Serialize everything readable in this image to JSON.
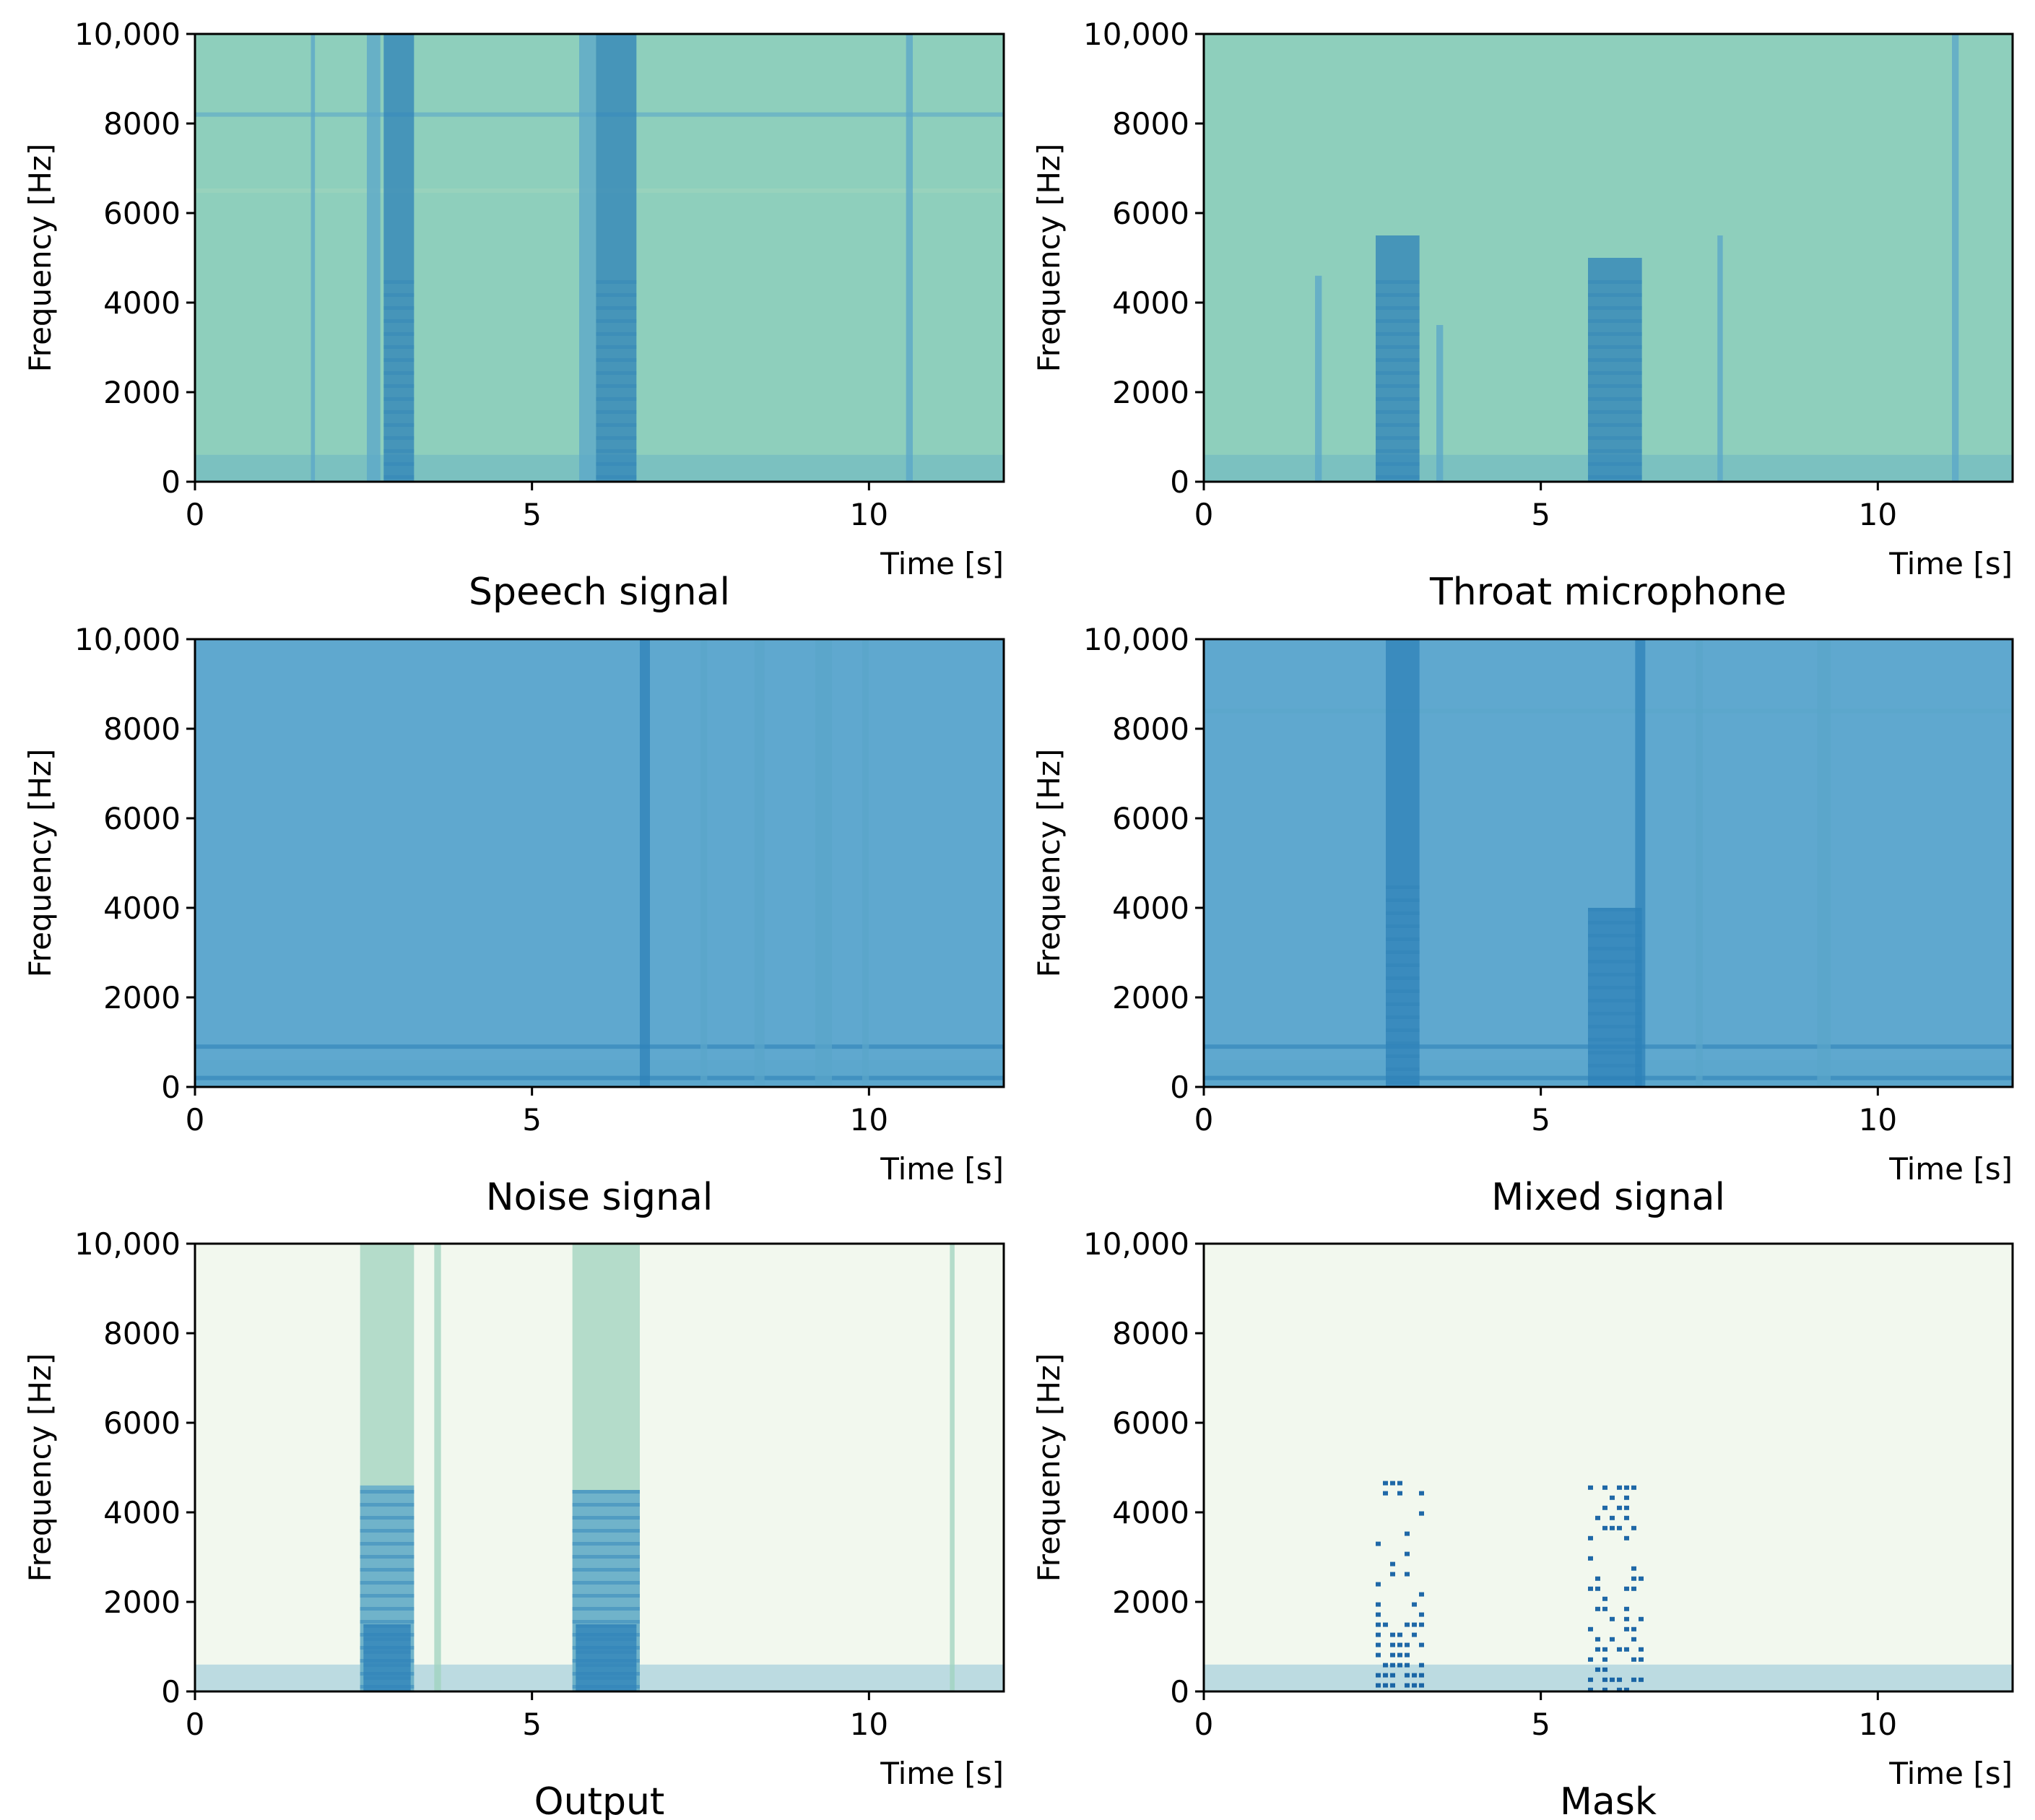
{
  "colors": {
    "background_speech": "#8ecfbc",
    "background_noise": "#5fa8cf",
    "background_output": "#f2f8ee",
    "stripe_dark": "#2e82b8",
    "stripe_mid": "#5aa6c9",
    "stripe_light": "#9fd3bd",
    "mask_dark": "#08589e"
  },
  "chart_data": [
    {
      "type": "heatmap",
      "title": "Speech signal",
      "xlabel": "Time [s]",
      "ylabel": "Frequency [Hz]",
      "xlim": [
        0,
        12
      ],
      "ylim": [
        0,
        10000
      ],
      "xticks": [
        0,
        5,
        10
      ],
      "xtick_labels": [
        "0",
        "5",
        "10"
      ],
      "yticks": [
        0,
        2000,
        4000,
        6000,
        8000,
        10000
      ],
      "ytick_labels": [
        "0",
        "2000",
        "4000",
        "6000",
        "8000",
        "10,000"
      ],
      "background": "background_speech",
      "bands": [
        {
          "t0": 1.72,
          "t1": 1.78,
          "f_top": 10000,
          "color": "stripe_mid"
        },
        {
          "t0": 2.55,
          "t1": 2.75,
          "f_top": 10000,
          "color": "stripe_mid"
        },
        {
          "t0": 2.8,
          "t1": 3.25,
          "f_top": 10000,
          "color": "stripe_dark"
        },
        {
          "t0": 5.7,
          "t1": 5.95,
          "f_top": 10000,
          "color": "stripe_mid"
        },
        {
          "t0": 5.95,
          "t1": 6.55,
          "f_top": 10000,
          "color": "stripe_dark"
        },
        {
          "t0": 10.55,
          "t1": 10.65,
          "f_top": 10000,
          "color": "stripe_mid"
        }
      ],
      "hlines": [
        {
          "f": 8200,
          "color": "stripe_mid"
        },
        {
          "f": 6500,
          "color": "stripe_light"
        }
      ]
    },
    {
      "type": "heatmap",
      "title": "Throat microphone",
      "xlabel": "Time [s]",
      "ylabel": "Frequency [Hz]",
      "xlim": [
        0,
        12
      ],
      "ylim": [
        0,
        10000
      ],
      "xticks": [
        0,
        5,
        10
      ],
      "xtick_labels": [
        "0",
        "5",
        "10"
      ],
      "yticks": [
        0,
        2000,
        4000,
        6000,
        8000,
        10000
      ],
      "ytick_labels": [
        "0",
        "2000",
        "4000",
        "6000",
        "8000",
        "10,000"
      ],
      "background": "background_speech",
      "bands": [
        {
          "t0": 1.65,
          "t1": 1.75,
          "f_top": 4600,
          "color": "stripe_mid"
        },
        {
          "t0": 2.55,
          "t1": 3.2,
          "f_top": 5500,
          "color": "stripe_dark"
        },
        {
          "t0": 3.45,
          "t1": 3.55,
          "f_top": 3500,
          "color": "stripe_mid"
        },
        {
          "t0": 5.7,
          "t1": 6.5,
          "f_top": 5000,
          "color": "stripe_dark"
        },
        {
          "t0": 7.62,
          "t1": 7.7,
          "f_top": 5500,
          "color": "stripe_mid"
        },
        {
          "t0": 11.1,
          "t1": 11.2,
          "f_top": 10000,
          "color": "stripe_mid"
        }
      ],
      "hlines": []
    },
    {
      "type": "heatmap",
      "title": "Noise signal",
      "xlabel": "Time [s]",
      "ylabel": "Frequency [Hz]",
      "xlim": [
        0,
        12
      ],
      "ylim": [
        0,
        10000
      ],
      "xticks": [
        0,
        5,
        10
      ],
      "xtick_labels": [
        "0",
        "5",
        "10"
      ],
      "yticks": [
        0,
        2000,
        4000,
        6000,
        8000,
        10000
      ],
      "ytick_labels": [
        "0",
        "2000",
        "4000",
        "6000",
        "8000",
        "10,000"
      ],
      "background": "background_noise",
      "bands": [
        {
          "t0": 6.6,
          "t1": 6.75,
          "f_top": 10000,
          "color": "stripe_dark"
        },
        {
          "t0": 7.5,
          "t1": 7.6,
          "f_top": 10000,
          "color": "stripe_mid"
        },
        {
          "t0": 8.3,
          "t1": 8.45,
          "f_top": 10000,
          "color": "stripe_mid"
        },
        {
          "t0": 9.2,
          "t1": 9.45,
          "f_top": 10000,
          "color": "stripe_mid"
        },
        {
          "t0": 9.9,
          "t1": 10.0,
          "f_top": 10000,
          "color": "stripe_mid"
        }
      ],
      "hlines": [
        {
          "f": 900,
          "color": "stripe_dark"
        },
        {
          "f": 200,
          "color": "stripe_dark"
        }
      ]
    },
    {
      "type": "heatmap",
      "title": "Mixed signal",
      "xlabel": "Time [s]",
      "ylabel": "Frequency [Hz]",
      "xlim": [
        0,
        12
      ],
      "ylim": [
        0,
        10000
      ],
      "xticks": [
        0,
        5,
        10
      ],
      "xtick_labels": [
        "0",
        "5",
        "10"
      ],
      "yticks": [
        0,
        2000,
        4000,
        6000,
        8000,
        10000
      ],
      "ytick_labels": [
        "0",
        "2000",
        "4000",
        "6000",
        "8000",
        "10,000"
      ],
      "background": "background_noise",
      "bands": [
        {
          "t0": 2.7,
          "t1": 3.2,
          "f_top": 10000,
          "color": "stripe_dark"
        },
        {
          "t0": 5.7,
          "t1": 6.5,
          "f_top": 4000,
          "color": "stripe_dark"
        },
        {
          "t0": 6.4,
          "t1": 6.55,
          "f_top": 10000,
          "color": "stripe_dark"
        },
        {
          "t0": 7.3,
          "t1": 7.4,
          "f_top": 10000,
          "color": "stripe_mid"
        },
        {
          "t0": 9.1,
          "t1": 9.3,
          "f_top": 10000,
          "color": "stripe_mid"
        }
      ],
      "hlines": [
        {
          "f": 900,
          "color": "stripe_dark"
        },
        {
          "f": 200,
          "color": "stripe_dark"
        },
        {
          "f": 8400,
          "color": "stripe_mid"
        }
      ]
    },
    {
      "type": "heatmap",
      "title": "Output",
      "xlabel": "Time [s]",
      "ylabel": "Frequency [Hz]",
      "xlim": [
        0,
        12
      ],
      "ylim": [
        0,
        10000
      ],
      "xticks": [
        0,
        5,
        10
      ],
      "xtick_labels": [
        "0",
        "5",
        "10"
      ],
      "yticks": [
        0,
        2000,
        4000,
        6000,
        8000,
        10000
      ],
      "ytick_labels": [
        "0",
        "2000",
        "4000",
        "6000",
        "8000",
        "10,000"
      ],
      "background": "background_output",
      "bands": [
        {
          "t0": 2.45,
          "t1": 3.25,
          "f_top": 10000,
          "color": "stripe_light"
        },
        {
          "t0": 2.45,
          "t1": 3.25,
          "f_top": 4600,
          "color": "stripe_mid"
        },
        {
          "t0": 2.5,
          "t1": 3.2,
          "f_top": 1500,
          "color": "stripe_dark"
        },
        {
          "t0": 3.55,
          "t1": 3.65,
          "f_top": 10000,
          "color": "stripe_light"
        },
        {
          "t0": 5.6,
          "t1": 6.6,
          "f_top": 10000,
          "color": "stripe_light"
        },
        {
          "t0": 5.6,
          "t1": 6.6,
          "f_top": 4500,
          "color": "stripe_mid"
        },
        {
          "t0": 5.65,
          "t1": 6.55,
          "f_top": 1500,
          "color": "stripe_dark"
        },
        {
          "t0": 11.2,
          "t1": 11.27,
          "f_top": 10000,
          "color": "stripe_light"
        }
      ],
      "hlines": []
    },
    {
      "type": "heatmap",
      "title": "Mask",
      "xlabel": "Time [s]",
      "ylabel": "Frequency [Hz]",
      "xlim": [
        0,
        12
      ],
      "ylim": [
        0,
        10000
      ],
      "xticks": [
        0,
        5,
        10
      ],
      "xtick_labels": [
        "0",
        "5",
        "10"
      ],
      "yticks": [
        0,
        2000,
        4000,
        6000,
        8000,
        10000
      ],
      "ytick_labels": [
        "0",
        "2000",
        "4000",
        "6000",
        "8000",
        "10,000"
      ],
      "background": "background_output",
      "bands": [
        {
          "t0": 2.55,
          "t1": 3.2,
          "f_top": 4700,
          "color": "mask_dark",
          "sparse": true
        },
        {
          "t0": 5.7,
          "t1": 6.5,
          "f_top": 4600,
          "color": "mask_dark",
          "sparse": true
        }
      ],
      "hlines": []
    }
  ]
}
